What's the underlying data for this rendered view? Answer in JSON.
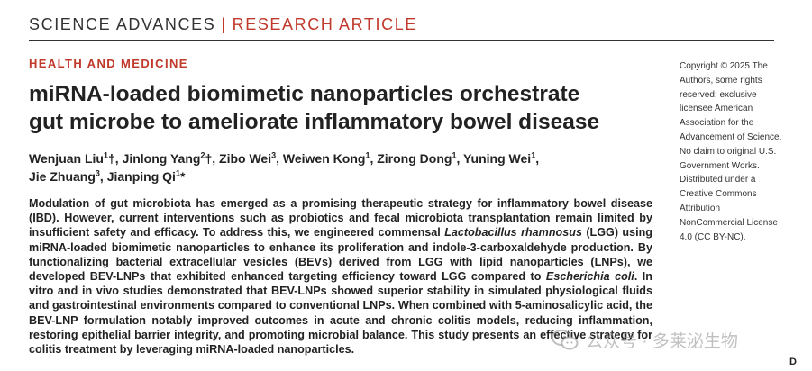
{
  "header": {
    "journal": "SCIENCE ADVANCES",
    "divider": "|",
    "article_type": "RESEARCH ARTICLE"
  },
  "section": "HEALTH AND MEDICINE",
  "title_line1": "miRNA-loaded biomimetic nanoparticles orchestrate",
  "title_line2": "gut microbe to ameliorate inflammatory bowel disease",
  "authors": [
    {
      "name": "Wenjuan Liu",
      "sup": "1",
      "mark": "†"
    },
    {
      "name": "Jinlong Yang",
      "sup": "2",
      "mark": "†"
    },
    {
      "name": "Zibo Wei",
      "sup": "3",
      "mark": ""
    },
    {
      "name": "Weiwen Kong",
      "sup": "1",
      "mark": ""
    },
    {
      "name": "Zirong Dong",
      "sup": "1",
      "mark": ""
    },
    {
      "name": "Yuning Wei",
      "sup": "1",
      "mark": ""
    },
    {
      "name": "Jie Zhuang",
      "sup": "3",
      "mark": ""
    },
    {
      "name": "Jianping Qi",
      "sup": "1",
      "mark": "*"
    }
  ],
  "abstract": {
    "part1": "Modulation of gut microbiota has emerged as a promising therapeutic strategy for inflammatory bowel disease (IBD). However, current interventions such as probiotics and fecal microbiota transplantation remain limited by insufficient safety and efficacy. To address this, we engineered commensal ",
    "species1": "Lactobacillus rhamnosus",
    "part2": " (LGG) using miRNA-loaded biomimetic nanoparticles to enhance its proliferation and indole-3-carboxaldehyde production. By functionalizing bacterial extracellular vesicles (BEVs) derived from LGG with lipid nanoparticles (LNPs), we developed BEV-LNPs that exhibited enhanced targeting efficiency toward LGG compared to ",
    "species2": "Escherichia coli",
    "part3": ". In vitro and in vivo studies demonstrated that BEV-LNPs showed superior stability in simulated physiological fluids and gastrointestinal environments compared to conventional LNPs. When combined with 5-aminosalicylic acid, the BEV-LNP formulation notably improved outcomes in acute and chronic colitis models, reducing inflammation, restoring epithelial barrier integrity, and promoting microbial balance. This study presents an effective strategy for colitis treatment by leveraging miRNA-loaded nanoparticles."
  },
  "copyright": "Copyright © 2025 The Authors, some rights reserved; exclusive licensee American Association for the Advancement of Science. No claim to original U.S. Government Works. Distributed under a Creative Commons Attribution NonCommercial License 4.0 (CC BY-NC).",
  "watermark": {
    "text": "公众号 · 多莱泌生物",
    "icon": "wechat-icon"
  },
  "edge_fragment": "D",
  "colors": {
    "accent": "#c0392b",
    "text": "#222222"
  }
}
